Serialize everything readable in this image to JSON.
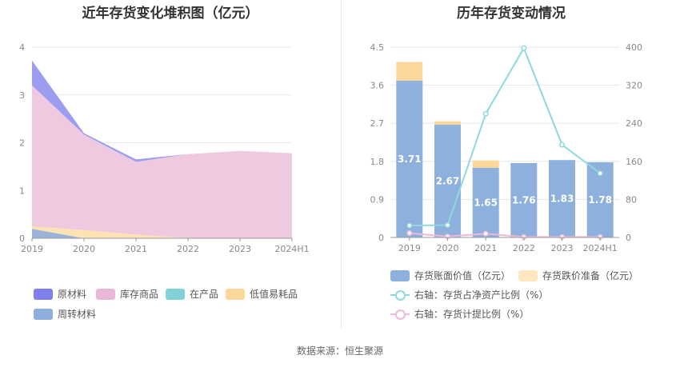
{
  "left_chart": {
    "title": "近年存货变化堆积图（亿元）",
    "legend": [
      "原材料",
      "库存商品",
      "在产品",
      "低值易耗品",
      "周转材料"
    ]
  },
  "right_chart": {
    "title": "历年存货变动情况",
    "legend": [
      "存货账面价值（亿元）",
      "存货跌价准备（亿元）",
      "右轴：存货占净资产比例（%）",
      "右轴：存货计提比例（%）"
    ]
  },
  "source": "数据来源：恒生聚源",
  "chart_data": [
    {
      "type": "area",
      "title": "近年存货变化堆积图（亿元）",
      "categories": [
        "2019",
        "2020",
        "2021",
        "2022",
        "2023",
        "2024H1"
      ],
      "ylim": [
        0,
        4
      ],
      "yticks": [
        "0",
        "1",
        "2",
        "3",
        "4"
      ],
      "stacked": true,
      "grid": true,
      "legend_position": "bottom",
      "series": [
        {
          "name": "周转材料",
          "color": "#9bb3d9",
          "values": [
            0.2,
            0.0,
            0.0,
            0.0,
            0.0,
            0.0
          ]
        },
        {
          "name": "低值易耗品",
          "color": "#fde3b4",
          "values": [
            0.05,
            0.17,
            0.08,
            0.0,
            0.0,
            0.0
          ]
        },
        {
          "name": "在产品",
          "color": "#88d4d8",
          "values": [
            0.0,
            0.0,
            0.0,
            0.0,
            0.0,
            0.0
          ]
        },
        {
          "name": "库存商品",
          "color": "#eec9e0",
          "values": [
            2.95,
            2.0,
            1.52,
            1.76,
            1.83,
            1.78
          ]
        },
        {
          "name": "原材料",
          "color": "#9c9cf1",
          "values": [
            0.52,
            0.03,
            0.05,
            0.0,
            0.0,
            0.0
          ]
        }
      ]
    },
    {
      "type": "bar",
      "title": "历年存货变动情况",
      "categories": [
        "2019",
        "2020",
        "2021",
        "2022",
        "2023",
        "2024H1"
      ],
      "ylim": [
        0,
        4.5
      ],
      "yticks": [
        "0",
        "0.9",
        "1.8",
        "2.7",
        "3.6",
        "4.5"
      ],
      "y2lim": [
        0,
        400
      ],
      "y2ticks": [
        "0",
        "80",
        "160",
        "240",
        "320",
        "400"
      ],
      "grid": true,
      "legend_position": "bottom",
      "series": [
        {
          "name": "存货账面价值（亿元）",
          "type": "bar",
          "stack": "a",
          "color": "#8eb0dc",
          "values": [
            3.71,
            2.67,
            1.65,
            1.76,
            1.83,
            1.78
          ],
          "labels": [
            "3.71",
            "2.67",
            "1.65",
            "1.76",
            "1.83",
            "1.78"
          ]
        },
        {
          "name": "存货跌价准备（亿元）",
          "type": "bar",
          "stack": "a",
          "color": "#fdd79a",
          "values": [
            0.44,
            0.08,
            0.17,
            0.0,
            0.0,
            0.0
          ]
        },
        {
          "name": "右轴：存货占净资产比例（%）",
          "type": "line",
          "axis": "right",
          "color": "#8fd9de",
          "values": [
            25,
            26,
            260,
            398,
            195,
            135
          ]
        },
        {
          "name": "右轴：存货计提比例（%）",
          "type": "line",
          "axis": "right",
          "color": "#f1b8da",
          "values": [
            9,
            2,
            8,
            1,
            1,
            1
          ]
        }
      ]
    }
  ]
}
